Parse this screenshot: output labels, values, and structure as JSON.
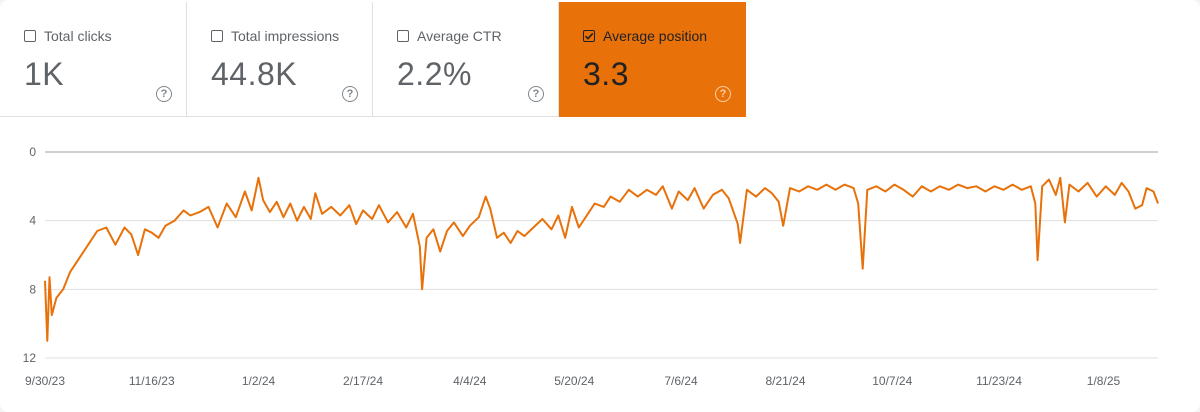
{
  "metrics": [
    {
      "label": "Total clicks",
      "value": "1K",
      "checked": false
    },
    {
      "label": "Total impressions",
      "value": "44.8K",
      "checked": false
    },
    {
      "label": "Average CTR",
      "value": "2.2%",
      "checked": false
    },
    {
      "label": "Average position",
      "value": "3.3",
      "checked": true
    }
  ],
  "help_glyph": "?",
  "colors": {
    "accent": "#e8710a",
    "grid": "#e0e0e0",
    "text": "#5f6368"
  },
  "chart_data": {
    "type": "line",
    "title": "",
    "xlabel": "",
    "ylabel": "",
    "y_reversed": true,
    "ylim": [
      0,
      12
    ],
    "yticks": [
      0,
      4,
      8,
      12
    ],
    "x_range": [
      "2023-09-30",
      "2025-02-01"
    ],
    "xticks": [
      {
        "date": "2023-09-30",
        "label": "9/30/23"
      },
      {
        "date": "2023-11-16",
        "label": "11/16/23"
      },
      {
        "date": "2024-01-02",
        "label": "1/2/24"
      },
      {
        "date": "2024-02-17",
        "label": "2/17/24"
      },
      {
        "date": "2024-04-04",
        "label": "4/4/24"
      },
      {
        "date": "2024-05-20",
        "label": "5/20/24"
      },
      {
        "date": "2024-07-06",
        "label": "7/6/24"
      },
      {
        "date": "2024-08-21",
        "label": "8/21/24"
      },
      {
        "date": "2024-10-07",
        "label": "10/7/24"
      },
      {
        "date": "2024-11-23",
        "label": "11/23/24"
      },
      {
        "date": "2025-01-08",
        "label": "1/8/25"
      }
    ],
    "grid": true,
    "series": [
      {
        "name": "Average position",
        "color": "#e8710a",
        "points": [
          [
            "2023-09-30",
            7.5
          ],
          [
            "2023-10-01",
            11.0
          ],
          [
            "2023-10-02",
            7.3
          ],
          [
            "2023-10-03",
            9.5
          ],
          [
            "2023-10-05",
            8.5
          ],
          [
            "2023-10-08",
            8.0
          ],
          [
            "2023-10-11",
            7.0
          ],
          [
            "2023-10-15",
            6.2
          ],
          [
            "2023-10-19",
            5.4
          ],
          [
            "2023-10-23",
            4.6
          ],
          [
            "2023-10-27",
            4.4
          ],
          [
            "2023-10-31",
            5.4
          ],
          [
            "2023-11-04",
            4.4
          ],
          [
            "2023-11-07",
            4.8
          ],
          [
            "2023-11-10",
            6.0
          ],
          [
            "2023-11-13",
            4.5
          ],
          [
            "2023-11-16",
            4.7
          ],
          [
            "2023-11-19",
            5.0
          ],
          [
            "2023-11-22",
            4.3
          ],
          [
            "2023-11-26",
            4.0
          ],
          [
            "2023-11-30",
            3.4
          ],
          [
            "2023-12-03",
            3.7
          ],
          [
            "2023-12-07",
            3.5
          ],
          [
            "2023-12-11",
            3.2
          ],
          [
            "2023-12-15",
            4.4
          ],
          [
            "2023-12-19",
            3.0
          ],
          [
            "2023-12-23",
            3.8
          ],
          [
            "2023-12-27",
            2.3
          ],
          [
            "2023-12-30",
            3.4
          ],
          [
            "2024-01-02",
            1.5
          ],
          [
            "2024-01-04",
            2.8
          ],
          [
            "2024-01-07",
            3.5
          ],
          [
            "2024-01-10",
            2.9
          ],
          [
            "2024-01-13",
            3.8
          ],
          [
            "2024-01-16",
            3.0
          ],
          [
            "2024-01-19",
            4.0
          ],
          [
            "2024-01-22",
            3.2
          ],
          [
            "2024-01-25",
            3.9
          ],
          [
            "2024-01-27",
            2.4
          ],
          [
            "2024-01-30",
            3.6
          ],
          [
            "2024-02-03",
            3.2
          ],
          [
            "2024-02-07",
            3.7
          ],
          [
            "2024-02-11",
            3.1
          ],
          [
            "2024-02-14",
            4.2
          ],
          [
            "2024-02-17",
            3.4
          ],
          [
            "2024-02-21",
            3.9
          ],
          [
            "2024-02-24",
            3.1
          ],
          [
            "2024-02-28",
            4.1
          ],
          [
            "2024-03-03",
            3.5
          ],
          [
            "2024-03-07",
            4.4
          ],
          [
            "2024-03-10",
            3.6
          ],
          [
            "2024-03-13",
            5.5
          ],
          [
            "2024-03-14",
            8.0
          ],
          [
            "2024-03-16",
            5.0
          ],
          [
            "2024-03-19",
            4.5
          ],
          [
            "2024-03-22",
            5.8
          ],
          [
            "2024-03-25",
            4.6
          ],
          [
            "2024-03-28",
            4.1
          ],
          [
            "2024-04-01",
            4.9
          ],
          [
            "2024-04-04",
            4.3
          ],
          [
            "2024-04-08",
            3.8
          ],
          [
            "2024-04-11",
            2.6
          ],
          [
            "2024-04-13",
            3.3
          ],
          [
            "2024-04-16",
            5.0
          ],
          [
            "2024-04-19",
            4.7
          ],
          [
            "2024-04-22",
            5.3
          ],
          [
            "2024-04-25",
            4.6
          ],
          [
            "2024-04-28",
            4.9
          ],
          [
            "2024-05-02",
            4.4
          ],
          [
            "2024-05-06",
            3.9
          ],
          [
            "2024-05-10",
            4.5
          ],
          [
            "2024-05-13",
            3.7
          ],
          [
            "2024-05-16",
            5.0
          ],
          [
            "2024-05-19",
            3.2
          ],
          [
            "2024-05-22",
            4.4
          ],
          [
            "2024-05-26",
            3.6
          ],
          [
            "2024-05-29",
            3.0
          ],
          [
            "2024-06-02",
            3.2
          ],
          [
            "2024-06-05",
            2.6
          ],
          [
            "2024-06-09",
            2.9
          ],
          [
            "2024-06-13",
            2.2
          ],
          [
            "2024-06-17",
            2.6
          ],
          [
            "2024-06-21",
            2.2
          ],
          [
            "2024-06-25",
            2.5
          ],
          [
            "2024-06-28",
            2.0
          ],
          [
            "2024-07-02",
            3.3
          ],
          [
            "2024-07-05",
            2.3
          ],
          [
            "2024-07-09",
            2.8
          ],
          [
            "2024-07-12",
            2.1
          ],
          [
            "2024-07-16",
            3.3
          ],
          [
            "2024-07-20",
            2.5
          ],
          [
            "2024-07-24",
            2.2
          ],
          [
            "2024-07-27",
            2.7
          ],
          [
            "2024-07-31",
            4.2
          ],
          [
            "2024-08-01",
            5.3
          ],
          [
            "2024-08-04",
            2.2
          ],
          [
            "2024-08-08",
            2.6
          ],
          [
            "2024-08-12",
            2.1
          ],
          [
            "2024-08-15",
            2.4
          ],
          [
            "2024-08-18",
            2.9
          ],
          [
            "2024-08-20",
            4.3
          ],
          [
            "2024-08-23",
            2.1
          ],
          [
            "2024-08-27",
            2.3
          ],
          [
            "2024-08-31",
            2.0
          ],
          [
            "2024-09-04",
            2.2
          ],
          [
            "2024-09-08",
            1.9
          ],
          [
            "2024-09-12",
            2.2
          ],
          [
            "2024-09-16",
            1.9
          ],
          [
            "2024-09-20",
            2.1
          ],
          [
            "2024-09-22",
            3.0
          ],
          [
            "2024-09-24",
            6.8
          ],
          [
            "2024-09-26",
            2.2
          ],
          [
            "2024-09-30",
            2.0
          ],
          [
            "2024-10-04",
            2.3
          ],
          [
            "2024-10-08",
            1.9
          ],
          [
            "2024-10-12",
            2.2
          ],
          [
            "2024-10-16",
            2.6
          ],
          [
            "2024-10-20",
            2.0
          ],
          [
            "2024-10-24",
            2.3
          ],
          [
            "2024-10-28",
            2.0
          ],
          [
            "2024-11-01",
            2.2
          ],
          [
            "2024-11-05",
            1.9
          ],
          [
            "2024-11-09",
            2.1
          ],
          [
            "2024-11-13",
            2.0
          ],
          [
            "2024-11-17",
            2.3
          ],
          [
            "2024-11-21",
            2.0
          ],
          [
            "2024-11-25",
            2.2
          ],
          [
            "2024-11-29",
            1.9
          ],
          [
            "2024-12-03",
            2.2
          ],
          [
            "2024-12-07",
            2.0
          ],
          [
            "2024-12-09",
            3.0
          ],
          [
            "2024-12-10",
            6.3
          ],
          [
            "2024-12-12",
            2.0
          ],
          [
            "2024-12-15",
            1.6
          ],
          [
            "2024-12-18",
            2.5
          ],
          [
            "2024-12-20",
            1.5
          ],
          [
            "2024-12-22",
            4.1
          ],
          [
            "2024-12-24",
            1.9
          ],
          [
            "2024-12-28",
            2.3
          ],
          [
            "2025-01-01",
            1.8
          ],
          [
            "2025-01-05",
            2.6
          ],
          [
            "2025-01-09",
            2.0
          ],
          [
            "2025-01-13",
            2.5
          ],
          [
            "2025-01-16",
            1.8
          ],
          [
            "2025-01-19",
            2.3
          ],
          [
            "2025-01-22",
            3.3
          ],
          [
            "2025-01-25",
            3.1
          ],
          [
            "2025-01-27",
            2.1
          ],
          [
            "2025-01-30",
            2.3
          ],
          [
            "2025-02-01",
            3.0
          ]
        ]
      }
    ]
  }
}
